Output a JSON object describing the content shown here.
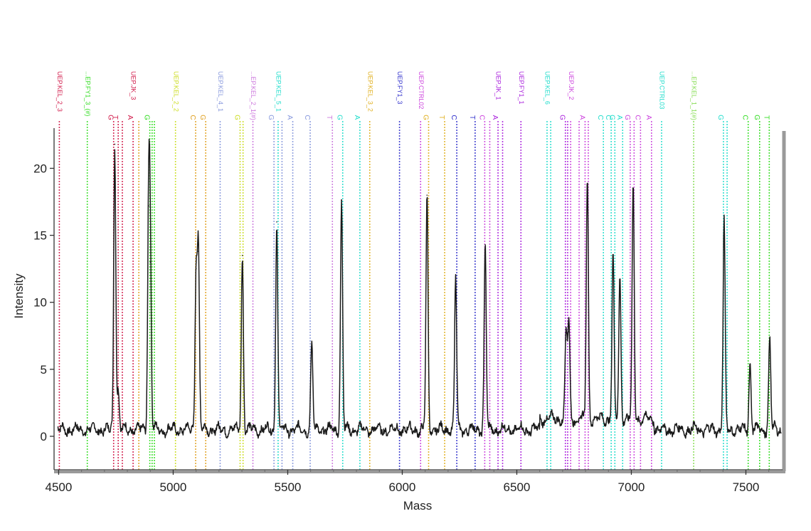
{
  "chart_data": {
    "type": "line",
    "title": "",
    "xlabel": "Mass",
    "ylabel": "Intensity",
    "xlim": [
      4480,
      7660
    ],
    "ylim": [
      -2.5,
      23
    ],
    "x_ticks": [
      4500,
      5000,
      5500,
      6000,
      6500,
      7000,
      7500
    ],
    "y_ticks": [
      0,
      5,
      10,
      15,
      20
    ],
    "grid": false,
    "legend": "none",
    "baseline": 0.5,
    "series": [
      {
        "color": "#1a1a1a",
        "peaks": [
          {
            "x": 4745,
            "y": 21.8
          },
          {
            "x": 4760,
            "y": 3.5
          },
          {
            "x": 4893,
            "y": 17.2
          },
          {
            "x": 4900,
            "y": 13.0
          },
          {
            "x": 5100,
            "y": 12.5
          },
          {
            "x": 5110,
            "y": 13.8
          },
          {
            "x": 5302,
            "y": 13.5
          },
          {
            "x": 5452,
            "y": 16.0
          },
          {
            "x": 5605,
            "y": 6.9
          },
          {
            "x": 5735,
            "y": 17.6
          },
          {
            "x": 6108,
            "y": 18.0
          },
          {
            "x": 6233,
            "y": 11.9
          },
          {
            "x": 6362,
            "y": 14.3
          },
          {
            "x": 6715,
            "y": 7.2
          },
          {
            "x": 6727,
            "y": 7.8
          },
          {
            "x": 6808,
            "y": 18.7
          },
          {
            "x": 6920,
            "y": 12.7
          },
          {
            "x": 6950,
            "y": 11.2
          },
          {
            "x": 7008,
            "y": 17.9
          },
          {
            "x": 7405,
            "y": 16.0
          },
          {
            "x": 7518,
            "y": 5.4
          },
          {
            "x": 7604,
            "y": 7.3
          }
        ]
      }
    ],
    "markers": [
      {
        "x": 4503,
        "label": "UEP.KEL_2_3",
        "letter": "",
        "color": "#d11a4a"
      },
      {
        "x": 4625,
        "label": "...EP.FY1_3_(#)",
        "letter": "",
        "color": "#33dd22"
      },
      {
        "x": 4740,
        "label": "",
        "letter": "G",
        "color": "#d11a4a"
      },
      {
        "x": 4760,
        "label": "",
        "letter": "T",
        "color": "#d11a4a"
      },
      {
        "x": 4778,
        "label": "",
        "letter": "",
        "color": "#d11a4a"
      },
      {
        "x": 4825,
        "label": "UEP.JK_3",
        "letter": "A",
        "color": "#d11a4a"
      },
      {
        "x": 4850,
        "label": "",
        "letter": "",
        "color": "#e0a020"
      },
      {
        "x": 4898,
        "label": "",
        "letter": "G",
        "color": "#33dd22"
      },
      {
        "x": 4908,
        "label": "",
        "letter": "",
        "color": "#33dd22"
      },
      {
        "x": 4918,
        "label": "",
        "letter": "",
        "color": "#33dd22"
      },
      {
        "x": 5010,
        "label": "UEP.KEL_2_2",
        "letter": "",
        "color": "#ccdd22"
      },
      {
        "x": 5098,
        "label": "",
        "letter": "C",
        "color": "#e0a020"
      },
      {
        "x": 5142,
        "label": "",
        "letter": "G",
        "color": "#e0a020"
      },
      {
        "x": 5205,
        "label": "UEP.KEL_4_1",
        "letter": "",
        "color": "#8899dd"
      },
      {
        "x": 5292,
        "label": "",
        "letter": "G",
        "color": "#ccdd22"
      },
      {
        "x": 5305,
        "label": "",
        "letter": "",
        "color": "#ccdd22"
      },
      {
        "x": 5348,
        "label": "...EP.KEL_2_1(#)",
        "letter": "",
        "color": "#cc77dd"
      },
      {
        "x": 5440,
        "label": "",
        "letter": "G",
        "color": "#8899dd"
      },
      {
        "x": 5458,
        "label": "UEP.KEL_5_1",
        "letter": "",
        "color": "#22ddcc"
      },
      {
        "x": 5475,
        "label": "",
        "letter": "",
        "color": "#8899dd"
      },
      {
        "x": 5522,
        "label": "",
        "letter": "A",
        "color": "#8899dd"
      },
      {
        "x": 5598,
        "label": "",
        "letter": "C",
        "color": "#8899dd"
      },
      {
        "x": 5695,
        "label": "",
        "letter": "T",
        "color": "#cc77dd"
      },
      {
        "x": 5740,
        "label": "",
        "letter": "G",
        "color": "#22ddcc"
      },
      {
        "x": 5815,
        "label": "",
        "letter": "A",
        "color": "#22ddcc"
      },
      {
        "x": 5858,
        "label": "UEP.KEL_3_2",
        "letter": "",
        "color": "#e0b020"
      },
      {
        "x": 5988,
        "label": "UEP.FY1_3",
        "letter": "",
        "color": "#3333cc"
      },
      {
        "x": 6080,
        "label": "UEP.CTRL02",
        "letter": "",
        "color": "#cc44dd"
      },
      {
        "x": 6115,
        "label": "",
        "letter": "G",
        "color": "#e0b020"
      },
      {
        "x": 6185,
        "label": "",
        "letter": "T",
        "color": "#e0b020"
      },
      {
        "x": 6238,
        "label": "",
        "letter": "C",
        "color": "#3333cc"
      },
      {
        "x": 6318,
        "label": "",
        "letter": "T",
        "color": "#3333cc"
      },
      {
        "x": 6360,
        "label": "",
        "letter": "C",
        "color": "#cc44dd"
      },
      {
        "x": 6382,
        "label": "",
        "letter": "",
        "color": "#cc44dd"
      },
      {
        "x": 6418,
        "label": "UEP.JK_1",
        "letter": "A",
        "color": "#aa22dd"
      },
      {
        "x": 6438,
        "label": "",
        "letter": "",
        "color": "#aa22dd"
      },
      {
        "x": 6518,
        "label": "UEP.FY1_1",
        "letter": "",
        "color": "#aa22dd"
      },
      {
        "x": 6632,
        "label": "UEP.KEL_6",
        "letter": "",
        "color": "#22ddcc"
      },
      {
        "x": 6648,
        "label": "",
        "letter": "",
        "color": "#22ddcc"
      },
      {
        "x": 6712,
        "label": "",
        "letter": "G",
        "color": "#aa22dd"
      },
      {
        "x": 6722,
        "label": "",
        "letter": "",
        "color": "#aa22dd"
      },
      {
        "x": 6735,
        "label": "UEP.JK_2",
        "letter": "",
        "color": "#cc44dd"
      },
      {
        "x": 6772,
        "label": "",
        "letter": "",
        "color": "#cc44dd"
      },
      {
        "x": 6798,
        "label": "",
        "letter": "A",
        "color": "#cc44dd"
      },
      {
        "x": 6812,
        "label": "",
        "letter": "",
        "color": "#cc44dd"
      },
      {
        "x": 6878,
        "label": "",
        "letter": "C",
        "color": "#22ddcc"
      },
      {
        "x": 6912,
        "label": "",
        "letter": "C",
        "color": "#22ddcc"
      },
      {
        "x": 6928,
        "label": "",
        "letter": "G",
        "color": "#22ddcc"
      },
      {
        "x": 6962,
        "label": "",
        "letter": "A",
        "color": "#22ddcc"
      },
      {
        "x": 6995,
        "label": "",
        "letter": "G",
        "color": "#cc44dd"
      },
      {
        "x": 7012,
        "label": "",
        "letter": "",
        "color": "#cc44dd"
      },
      {
        "x": 7040,
        "label": "",
        "letter": "C",
        "color": "#cc44dd"
      },
      {
        "x": 7088,
        "label": "",
        "letter": "A",
        "color": "#cc44dd"
      },
      {
        "x": 7132,
        "label": "UEP.CTRL03",
        "letter": "",
        "color": "#22ddcc"
      },
      {
        "x": 7272,
        "label": "...EP.KEL_1_1(#)",
        "letter": "",
        "color": "#88dd55"
      },
      {
        "x": 7402,
        "label": "",
        "letter": "G",
        "color": "#22ddcc"
      },
      {
        "x": 7418,
        "label": "",
        "letter": "",
        "color": "#22ddcc"
      },
      {
        "x": 7510,
        "label": "",
        "letter": "C",
        "color": "#33dd22"
      },
      {
        "x": 7560,
        "label": "",
        "letter": "G",
        "color": "#33dd22"
      },
      {
        "x": 7602,
        "label": "",
        "letter": "T",
        "color": "#33dd22"
      }
    ]
  }
}
